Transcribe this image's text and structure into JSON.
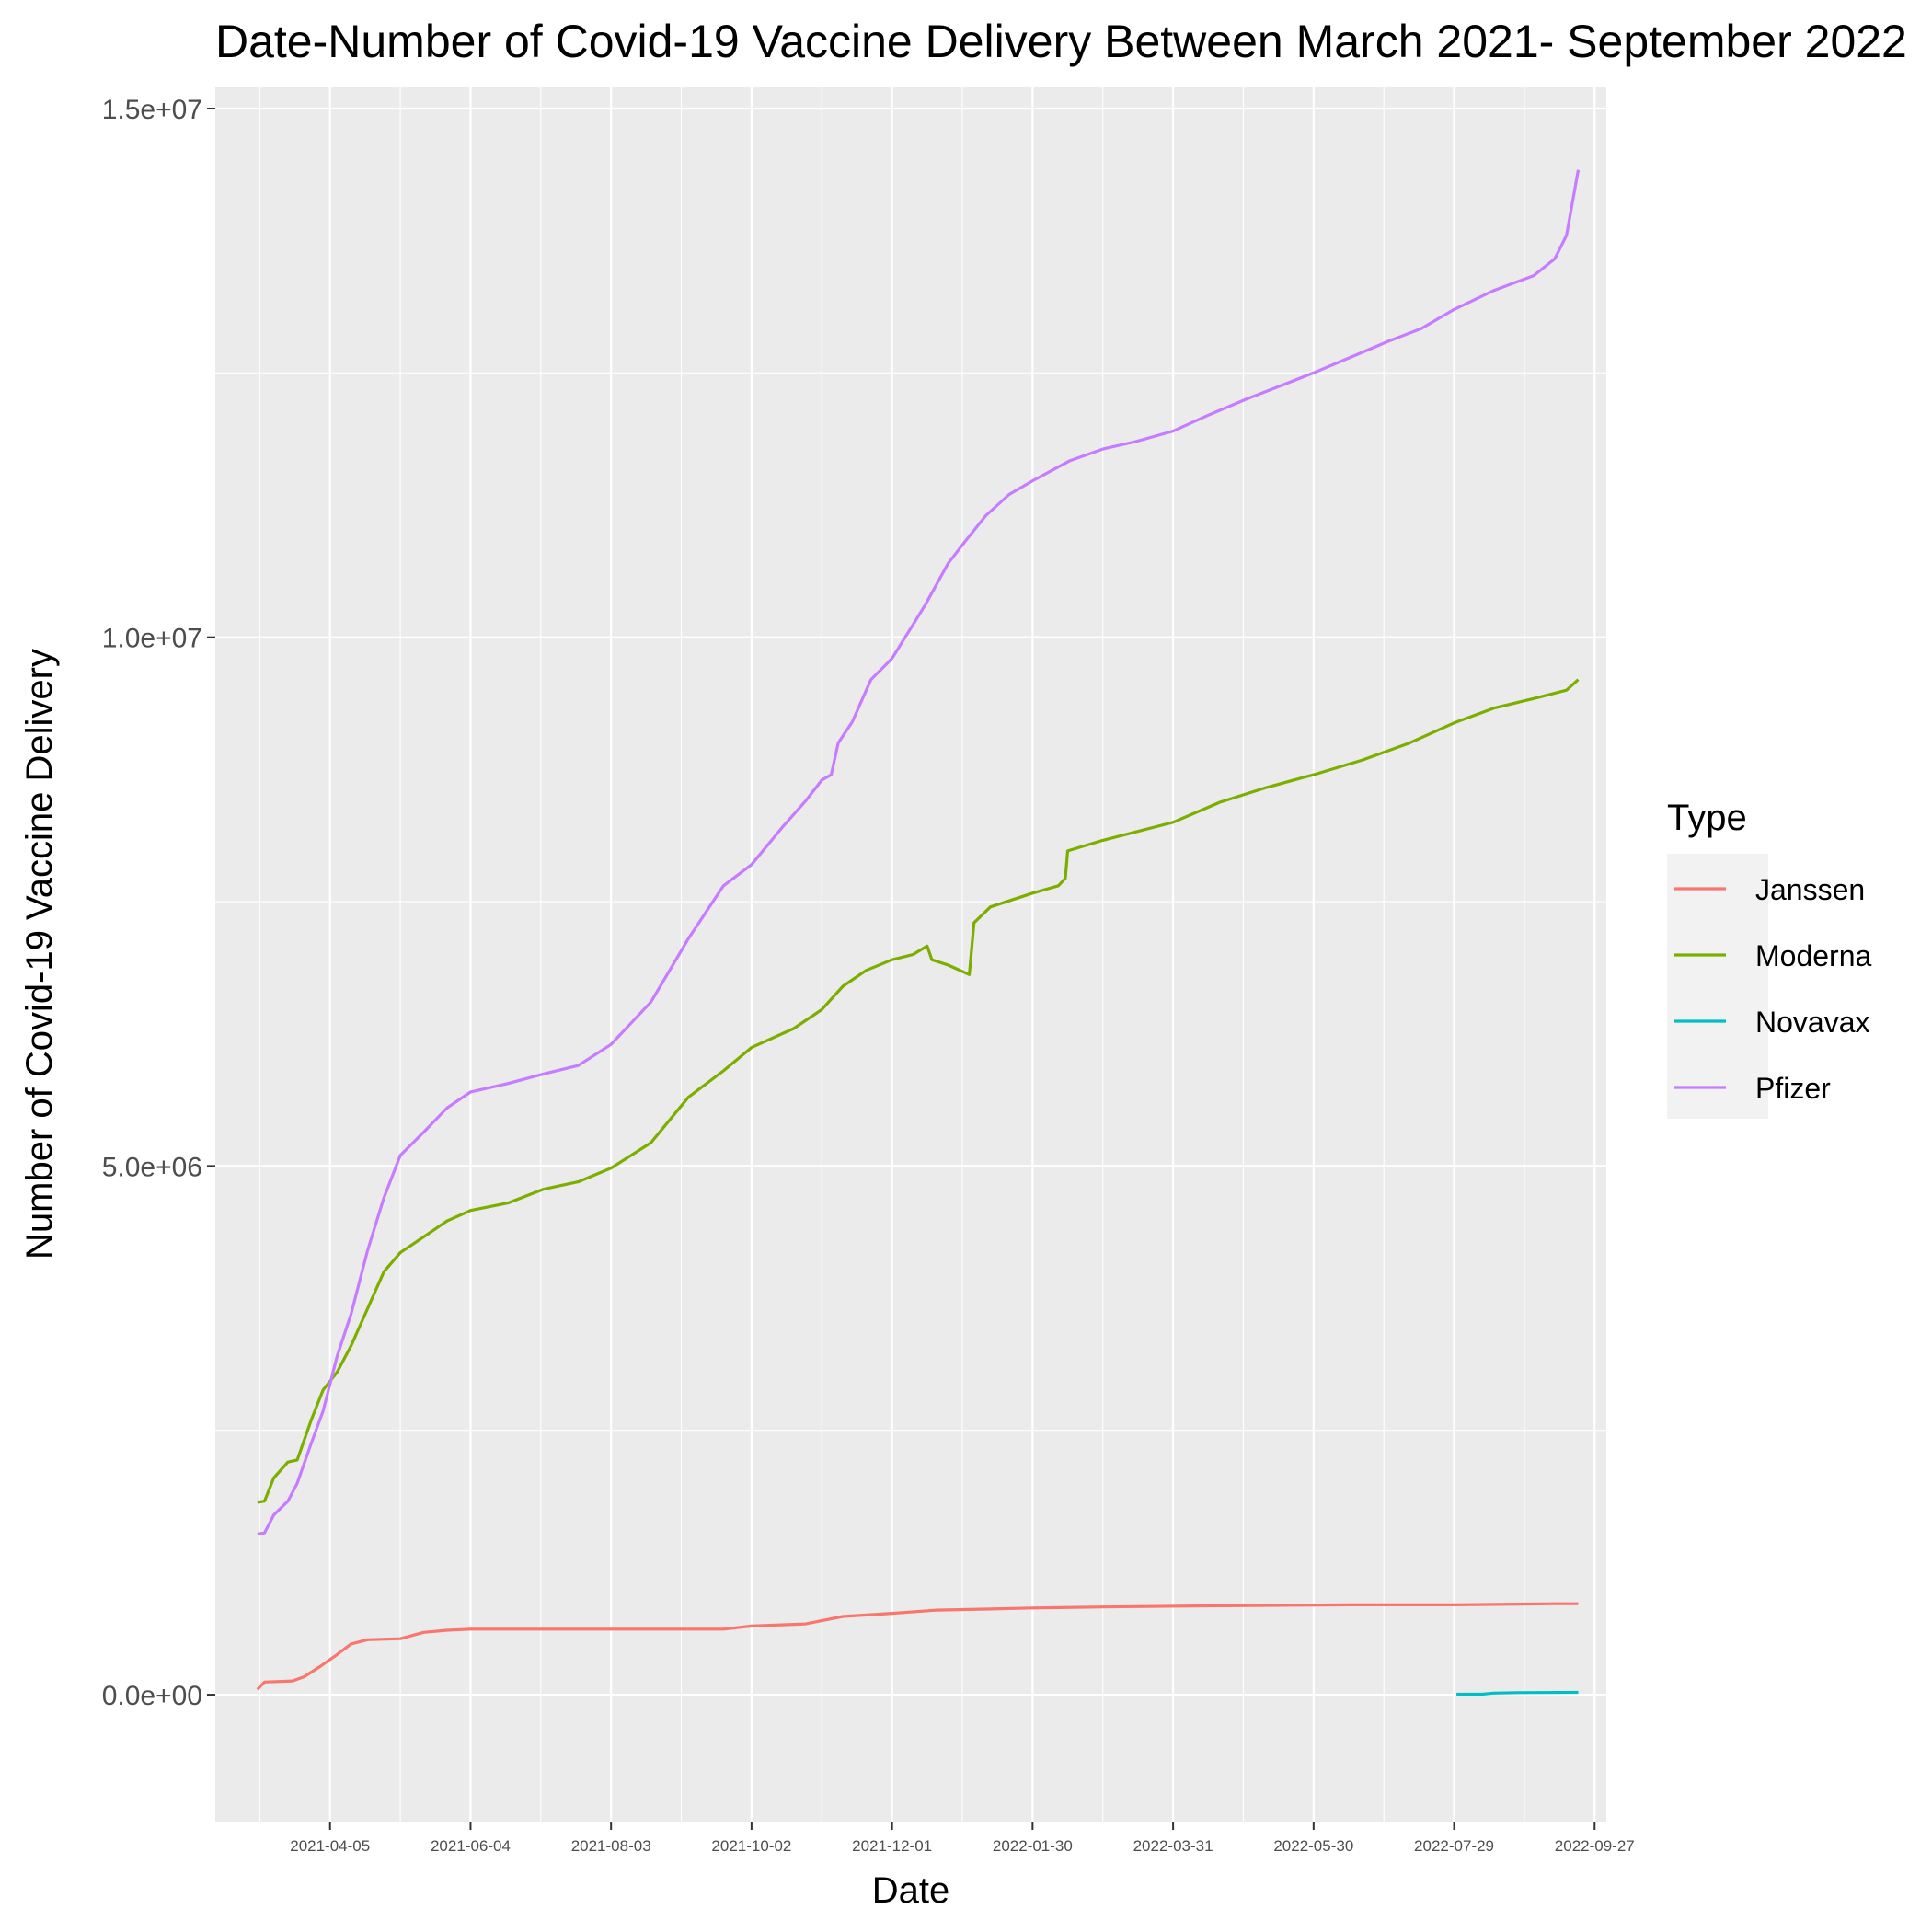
{
  "chart_data": {
    "type": "line",
    "title": "Date-Number of Covid-19 Vaccine Delivery Between March 2021- September 2022",
    "xlabel": "Date",
    "ylabel": "Number of Covid-19 Vaccine Delivery",
    "xlim": [
      "2021-02-15",
      "2022-10-02"
    ],
    "ylim": [
      -1200000,
      15200000
    ],
    "x_ticks": [
      "2021-04-05",
      "2021-06-04",
      "2021-08-03",
      "2021-10-02",
      "2021-12-01",
      "2022-01-30",
      "2022-03-31",
      "2022-05-30",
      "2022-07-29",
      "2022-09-27"
    ],
    "y_ticks": [
      {
        "value": 0,
        "label": "0.0e+00"
      },
      {
        "value": 5000000,
        "label": "5.0e+06"
      },
      {
        "value": 10000000,
        "label": "1.0e+07"
      },
      {
        "value": 15000000,
        "label": "1.5e+07"
      }
    ],
    "grid": true,
    "legend": {
      "title": "Type",
      "position": "right"
    },
    "series": [
      {
        "name": "Janssen",
        "color": "#F8766D",
        "points": [
          [
            "2021-03-05",
            50000
          ],
          [
            "2021-03-08",
            120000
          ],
          [
            "2021-03-20",
            130000
          ],
          [
            "2021-03-25",
            170000
          ],
          [
            "2021-04-01",
            270000
          ],
          [
            "2021-04-08",
            380000
          ],
          [
            "2021-04-14",
            480000
          ],
          [
            "2021-04-21",
            520000
          ],
          [
            "2021-05-05",
            530000
          ],
          [
            "2021-05-15",
            590000
          ],
          [
            "2021-05-25",
            610000
          ],
          [
            "2021-06-04",
            620000
          ],
          [
            "2021-07-15",
            620000
          ],
          [
            "2021-08-20",
            620000
          ],
          [
            "2021-09-20",
            620000
          ],
          [
            "2021-10-02",
            650000
          ],
          [
            "2021-10-25",
            670000
          ],
          [
            "2021-11-10",
            740000
          ],
          [
            "2021-12-01",
            770000
          ],
          [
            "2021-12-20",
            800000
          ],
          [
            "2022-01-10",
            810000
          ],
          [
            "2022-01-30",
            820000
          ],
          [
            "2022-03-01",
            830000
          ],
          [
            "2022-04-15",
            840000
          ],
          [
            "2022-06-15",
            850000
          ],
          [
            "2022-07-29",
            850000
          ],
          [
            "2022-09-10",
            860000
          ],
          [
            "2022-09-20",
            860000
          ]
        ]
      },
      {
        "name": "Moderna",
        "color": "#7CAE00",
        "points": [
          [
            "2021-03-05",
            1820000
          ],
          [
            "2021-03-08",
            1830000
          ],
          [
            "2021-03-12",
            2050000
          ],
          [
            "2021-03-18",
            2200000
          ],
          [
            "2021-03-22",
            2220000
          ],
          [
            "2021-03-28",
            2600000
          ],
          [
            "2021-04-02",
            2880000
          ],
          [
            "2021-04-08",
            3050000
          ],
          [
            "2021-04-14",
            3300000
          ],
          [
            "2021-04-21",
            3650000
          ],
          [
            "2021-04-28",
            4000000
          ],
          [
            "2021-05-05",
            4180000
          ],
          [
            "2021-05-15",
            4330000
          ],
          [
            "2021-05-25",
            4480000
          ],
          [
            "2021-06-04",
            4580000
          ],
          [
            "2021-06-20",
            4650000
          ],
          [
            "2021-07-05",
            4780000
          ],
          [
            "2021-07-20",
            4850000
          ],
          [
            "2021-08-03",
            4980000
          ],
          [
            "2021-08-20",
            5220000
          ],
          [
            "2021-09-05",
            5650000
          ],
          [
            "2021-09-20",
            5900000
          ],
          [
            "2021-10-02",
            6120000
          ],
          [
            "2021-10-20",
            6300000
          ],
          [
            "2021-11-01",
            6480000
          ],
          [
            "2021-11-10",
            6700000
          ],
          [
            "2021-11-20",
            6850000
          ],
          [
            "2021-12-01",
            6950000
          ],
          [
            "2021-12-10",
            7000000
          ],
          [
            "2021-12-16",
            7080000
          ],
          [
            "2021-12-18",
            6950000
          ],
          [
            "2021-12-25",
            6900000
          ],
          [
            "2022-01-03",
            6810000
          ],
          [
            "2022-01-05",
            7300000
          ],
          [
            "2022-01-12",
            7450000
          ],
          [
            "2022-01-30",
            7580000
          ],
          [
            "2022-02-10",
            7650000
          ],
          [
            "2022-02-13",
            7720000
          ],
          [
            "2022-02-14",
            7980000
          ],
          [
            "2022-03-01",
            8080000
          ],
          [
            "2022-03-31",
            8250000
          ],
          [
            "2022-04-20",
            8440000
          ],
          [
            "2022-05-10",
            8580000
          ],
          [
            "2022-05-30",
            8700000
          ],
          [
            "2022-06-20",
            8840000
          ],
          [
            "2022-07-10",
            9000000
          ],
          [
            "2022-07-29",
            9190000
          ],
          [
            "2022-08-15",
            9330000
          ],
          [
            "2022-09-01",
            9420000
          ],
          [
            "2022-09-15",
            9500000
          ],
          [
            "2022-09-20",
            9600000
          ]
        ]
      },
      {
        "name": "Novavax",
        "color": "#00BFC4",
        "points": [
          [
            "2022-07-30",
            5000
          ],
          [
            "2022-08-10",
            5000
          ],
          [
            "2022-08-15",
            15000
          ],
          [
            "2022-08-25",
            20000
          ],
          [
            "2022-09-20",
            22000
          ]
        ]
      },
      {
        "name": "Pfizer",
        "color": "#C77CFF",
        "points": [
          [
            "2021-03-05",
            1520000
          ],
          [
            "2021-03-08",
            1530000
          ],
          [
            "2021-03-12",
            1700000
          ],
          [
            "2021-03-18",
            1830000
          ],
          [
            "2021-03-22",
            2000000
          ],
          [
            "2021-03-28",
            2380000
          ],
          [
            "2021-04-02",
            2680000
          ],
          [
            "2021-04-08",
            3200000
          ],
          [
            "2021-04-14",
            3600000
          ],
          [
            "2021-04-21",
            4200000
          ],
          [
            "2021-04-28",
            4700000
          ],
          [
            "2021-05-05",
            5100000
          ],
          [
            "2021-05-15",
            5320000
          ],
          [
            "2021-05-25",
            5550000
          ],
          [
            "2021-06-04",
            5700000
          ],
          [
            "2021-06-20",
            5780000
          ],
          [
            "2021-07-05",
            5870000
          ],
          [
            "2021-07-20",
            5950000
          ],
          [
            "2021-08-03",
            6150000
          ],
          [
            "2021-08-20",
            6550000
          ],
          [
            "2021-09-05",
            7150000
          ],
          [
            "2021-09-20",
            7650000
          ],
          [
            "2021-10-02",
            7850000
          ],
          [
            "2021-10-15",
            8200000
          ],
          [
            "2021-10-25",
            8450000
          ],
          [
            "2021-11-01",
            8650000
          ],
          [
            "2021-11-05",
            8700000
          ],
          [
            "2021-11-08",
            9000000
          ],
          [
            "2021-11-14",
            9200000
          ],
          [
            "2021-11-22",
            9600000
          ],
          [
            "2021-12-01",
            9800000
          ],
          [
            "2021-12-15",
            10300000
          ],
          [
            "2021-12-25",
            10700000
          ],
          [
            "2022-01-01",
            10900000
          ],
          [
            "2022-01-10",
            11150000
          ],
          [
            "2022-01-20",
            11350000
          ],
          [
            "2022-01-30",
            11480000
          ],
          [
            "2022-02-15",
            11670000
          ],
          [
            "2022-03-01",
            11780000
          ],
          [
            "2022-03-15",
            11850000
          ],
          [
            "2022-03-31",
            11950000
          ],
          [
            "2022-04-15",
            12100000
          ],
          [
            "2022-05-01",
            12250000
          ],
          [
            "2022-05-15",
            12370000
          ],
          [
            "2022-05-30",
            12500000
          ],
          [
            "2022-06-15",
            12650000
          ],
          [
            "2022-07-01",
            12800000
          ],
          [
            "2022-07-15",
            12920000
          ],
          [
            "2022-07-29",
            13100000
          ],
          [
            "2022-08-15",
            13280000
          ],
          [
            "2022-09-01",
            13420000
          ],
          [
            "2022-09-10",
            13580000
          ],
          [
            "2022-09-15",
            13800000
          ],
          [
            "2022-09-20",
            14420000
          ]
        ]
      }
    ]
  }
}
